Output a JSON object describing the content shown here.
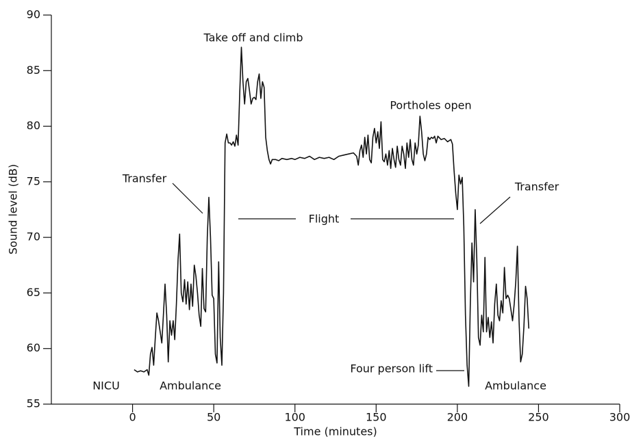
{
  "chart_data": {
    "type": "line",
    "x_label": "Time (minutes)",
    "y_label": "Sound level (dB)",
    "color": "#111111",
    "x": [
      1,
      3,
      5,
      7,
      9,
      10,
      11,
      12,
      13,
      14,
      15,
      16,
      17,
      18,
      19,
      20,
      21,
      22,
      23,
      24,
      25,
      26,
      27,
      28,
      29,
      30,
      31,
      32,
      33,
      34,
      35,
      36,
      37,
      38,
      39,
      40,
      41,
      42,
      43,
      44,
      45,
      46,
      47,
      48,
      49,
      50,
      51,
      52,
      53,
      54,
      55,
      56,
      57,
      58,
      59,
      60,
      61,
      62,
      63,
      64,
      65,
      66,
      67,
      68,
      69,
      70,
      71,
      72,
      73,
      74,
      75,
      76,
      77,
      78,
      79,
      80,
      81,
      82,
      83,
      84,
      85,
      86,
      88,
      90,
      92,
      95,
      98,
      100,
      103,
      106,
      109,
      112,
      115,
      118,
      121,
      124,
      127,
      130,
      133,
      136,
      138,
      139,
      140,
      141,
      142,
      143,
      144,
      145,
      146,
      147,
      148,
      149,
      150,
      151,
      152,
      153,
      154,
      155,
      156,
      157,
      158,
      159,
      160,
      161,
      162,
      163,
      164,
      165,
      166,
      167,
      168,
      169,
      170,
      171,
      172,
      173,
      174,
      175,
      176,
      177,
      178,
      179,
      180,
      181,
      182,
      183,
      184,
      185,
      186,
      187,
      188,
      190,
      192,
      194,
      196,
      197,
      198,
      199,
      200,
      201,
      202,
      203,
      204,
      205,
      206,
      207,
      208,
      209,
      210,
      211,
      212,
      213,
      214,
      215,
      216,
      217,
      218,
      219,
      220,
      221,
      222,
      223,
      224,
      225,
      226,
      227,
      228,
      229,
      230,
      231,
      232,
      233,
      234,
      235,
      236,
      237,
      238,
      239,
      240,
      241,
      242,
      243,
      244
    ],
    "values": [
      58.1,
      57.9,
      58.0,
      57.9,
      58.1,
      57.6,
      59.5,
      60.1,
      58.5,
      61,
      63.2,
      62.5,
      61.5,
      60.5,
      63,
      65.8,
      63,
      58.8,
      62.5,
      61.2,
      62.5,
      60.8,
      64,
      68,
      70.3,
      65,
      64.2,
      66.2,
      64,
      66,
      63.5,
      65.8,
      63.8,
      67.5,
      66.5,
      65,
      63,
      62,
      67.2,
      63.6,
      63.3,
      70,
      73.6,
      70,
      64.8,
      64.5,
      59.5,
      58.7,
      67.8,
      61,
      58.5,
      65,
      78.5,
      79.3,
      78.5,
      78.5,
      78.3,
      78.6,
      78.2,
      79.2,
      78.3,
      83,
      87.1,
      84,
      82,
      84,
      84.3,
      83.2,
      82,
      82.5,
      82.6,
      82.4,
      84,
      84.7,
      82.5,
      84,
      83.5,
      79,
      77.8,
      77,
      76.6,
      77,
      77,
      76.9,
      77.1,
      77,
      77.1,
      77,
      77.2,
      77.1,
      77.3,
      77,
      77.2,
      77.1,
      77.2,
      77,
      77.3,
      77.4,
      77.5,
      77.6,
      77.3,
      76.5,
      77.8,
      78.3,
      77.2,
      79,
      77.5,
      79.2,
      77,
      76.7,
      79,
      79.8,
      78.5,
      79.5,
      78,
      80.4,
      77,
      76.8,
      77.5,
      76.5,
      77.8,
      76.2,
      78,
      77,
      76.3,
      78.2,
      77,
      76.5,
      78.2,
      77.5,
      76.2,
      78.5,
      77.2,
      78.8,
      77,
      76.5,
      78.5,
      77.5,
      78.3,
      80.9,
      79.5,
      77.5,
      76.9,
      77.5,
      79,
      78.8,
      79,
      78.9,
      79.1,
      78.5,
      79.1,
      78.8,
      78.9,
      78.6,
      78.8,
      78.4,
      76,
      74,
      72.5,
      75.6,
      74.8,
      75.4,
      71,
      63,
      58.5,
      56.6,
      64,
      69.5,
      66,
      72.5,
      68,
      61,
      60.3,
      63,
      61.5,
      68.2,
      61.5,
      62.8,
      61,
      62.4,
      60.5,
      64,
      65.8,
      63,
      62.5,
      64.3,
      63.2,
      67.3,
      64.5,
      64.8,
      64.5,
      63.5,
      62.5,
      64,
      66,
      69.2,
      62.5,
      58.8,
      59.5,
      62,
      65.6,
      64.5,
      61.8
    ],
    "xlim": [
      -50,
      300
    ],
    "xticks": [
      0,
      50,
      100,
      150,
      200,
      250,
      300
    ],
    "ylim": [
      55,
      90
    ],
    "yticks": [
      55,
      60,
      65,
      70,
      75,
      80,
      85,
      90
    ],
    "annotations": [
      "Take off and climb",
      "Portholes open",
      "Transfer",
      "Transfer",
      "Flight",
      "Four person lift",
      "NICU",
      "Ambulance",
      "Ambulance"
    ]
  }
}
